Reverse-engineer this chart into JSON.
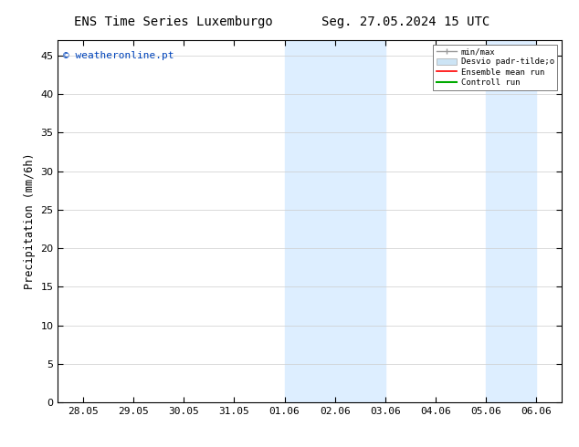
{
  "title_left": "ENS Time Series Luxemburgo",
  "title_right": "Seg. 27.05.2024 15 UTC",
  "ylabel": "Precipitation (mm/6h)",
  "watermark": "© weatheronline.pt",
  "watermark_color": "#0044bb",
  "background_color": "#ffffff",
  "plot_bg_color": "#ffffff",
  "ylim": [
    0,
    47
  ],
  "yticks": [
    0,
    5,
    10,
    15,
    20,
    25,
    30,
    35,
    40,
    45
  ],
  "xtick_labels": [
    "28.05",
    "29.05",
    "30.05",
    "31.05",
    "01.06",
    "02.06",
    "03.06",
    "04.06",
    "05.06",
    "06.06"
  ],
  "xtick_positions": [
    0,
    1,
    2,
    3,
    4,
    5,
    6,
    7,
    8,
    9
  ],
  "shaded_bands": [
    {
      "xstart": 4.0,
      "xend": 6.0,
      "color": "#ddeeff",
      "alpha": 1.0
    },
    {
      "xstart": 8.0,
      "xend": 9.0,
      "color": "#ddeeff",
      "alpha": 1.0
    }
  ],
  "legend_label_minmax": "min/max",
  "legend_label_desvio": "Desvio padr­tilde;o",
  "legend_label_ensemble": "Ensemble mean run",
  "legend_label_control": "Controll run",
  "legend_color_minmax": "#999999",
  "legend_color_desvio": "#cce4f5",
  "legend_color_ensemble": "#ff0000",
  "legend_color_control": "#00aa00",
  "title_fontsize": 10,
  "tick_fontsize": 8,
  "ylabel_fontsize": 8.5,
  "watermark_fontsize": 8
}
